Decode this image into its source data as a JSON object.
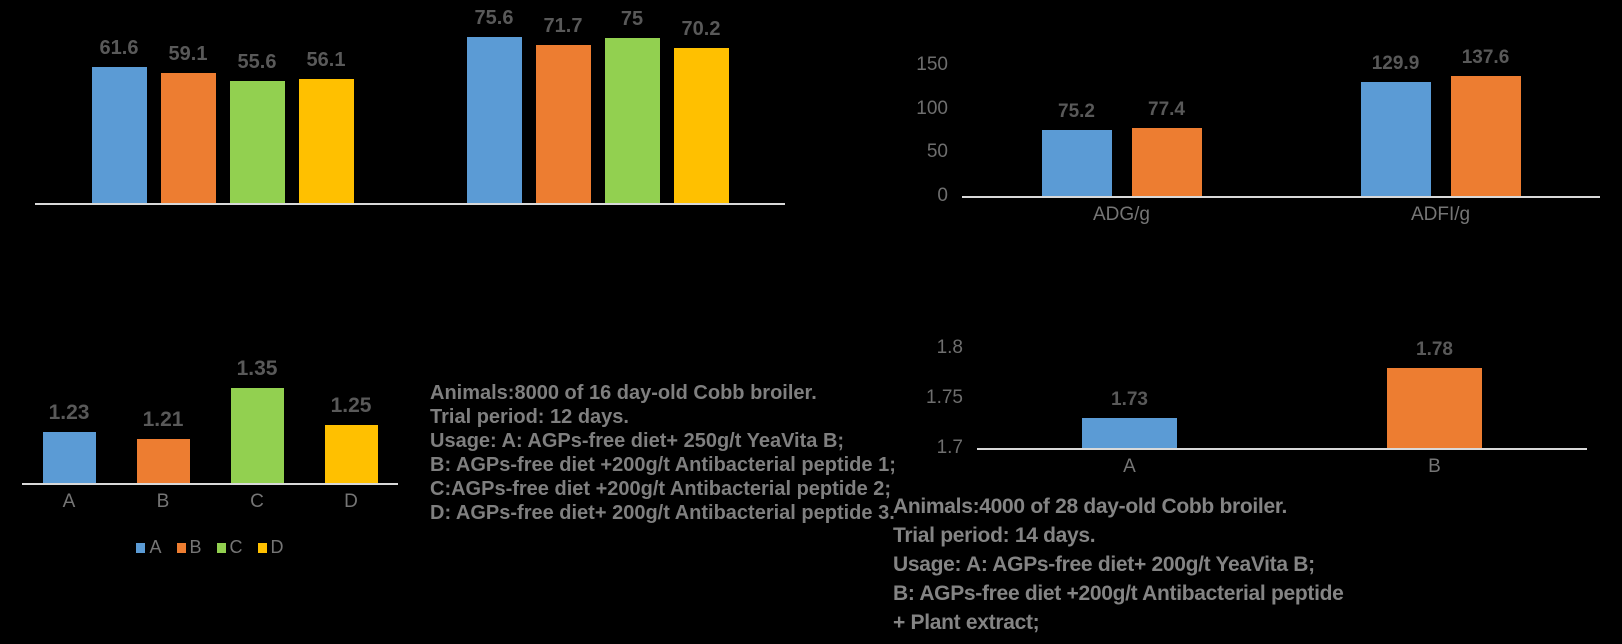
{
  "canvas": {
    "background": "#000000"
  },
  "palette": {
    "blue": "#5B9BD5",
    "orange": "#ED7D31",
    "green": "#92D050",
    "yellow": "#FFC000",
    "axis_line": "#D9D9D9",
    "data_label": "#595959",
    "tick_label": "#6E6E6E",
    "category_label": "#757575",
    "note_text_left": "#7F7F7F",
    "note_text_right": "#848484"
  },
  "chart_data": [
    {
      "type": "bar",
      "title": "",
      "categories": [
        "",
        ""
      ],
      "series": [
        {
          "color": "#5B9BD5",
          "values": [
            61.6,
            75.6
          ]
        },
        {
          "color": "#ED7D31",
          "values": [
            59.1,
            71.7
          ]
        },
        {
          "color": "#92D050",
          "values": [
            55.6,
            75
          ]
        },
        {
          "color": "#FFC000",
          "values": [
            56.1,
            70.2
          ]
        }
      ],
      "ylim": [
        0,
        84
      ],
      "yticks": [],
      "data_labels": true,
      "legend": false,
      "grid": false
    },
    {
      "type": "bar",
      "title": "",
      "categories": [
        "ADG/g",
        "ADFI/g"
      ],
      "series": [
        {
          "color": "#5B9BD5",
          "values": [
            75.2,
            129.9
          ]
        },
        {
          "color": "#ED7D31",
          "values": [
            77.4,
            137.6
          ]
        }
      ],
      "ylim": [
        0,
        160
      ],
      "yticks": [
        0,
        50,
        100,
        150
      ],
      "data_labels": true,
      "legend": false,
      "grid": false
    },
    {
      "type": "bar",
      "title": "",
      "categories": [
        "A",
        "B",
        "C",
        "D"
      ],
      "series": [
        {
          "colors": [
            "#5B9BD5",
            "#ED7D31",
            "#92D050",
            "#FFC000"
          ],
          "values": [
            1.23,
            1.21,
            1.35,
            1.25
          ]
        }
      ],
      "ylim": [
        1.09,
        1.42
      ],
      "yticks": [],
      "data_labels": true,
      "legend": [
        {
          "label": "A",
          "color": "#5B9BD5"
        },
        {
          "label": "B",
          "color": "#ED7D31"
        },
        {
          "label": "C",
          "color": "#92D050"
        },
        {
          "label": "D",
          "color": "#FFC000"
        }
      ],
      "grid": false
    },
    {
      "type": "bar",
      "title": "",
      "categories": [
        "A",
        "B"
      ],
      "series": [
        {
          "colors": [
            "#5B9BD5",
            "#ED7D31"
          ],
          "values": [
            1.73,
            1.78
          ]
        }
      ],
      "ylim": [
        1.7,
        1.82
      ],
      "yticks": [
        1.7,
        1.75,
        1.8
      ],
      "data_labels": true,
      "legend": false,
      "grid": false
    }
  ],
  "notes": {
    "study1": {
      "lines": [
        "Animals:8000 of 16 day-old Cobb broiler.",
        "Trial period: 12 days.",
        "Usage: A: AGPs-free diet+ 250g/t YeaVita B;",
        "B: AGPs-free diet +200g/t Antibacterial peptide 1;",
        "C:AGPs-free diet +200g/t Antibacterial peptide 2;",
        "D: AGPs-free diet+ 200g/t Antibacterial peptide 3."
      ]
    },
    "study2": {
      "lines": [
        "Animals:4000 of 28 day-old Cobb broiler.",
        "Trial period: 14 days.",
        "Usage: A: AGPs-free diet+ 200g/t YeaVita B;",
        "B: AGPs-free diet +200g/t Antibacterial peptide",
        "+ Plant extract;"
      ]
    }
  }
}
